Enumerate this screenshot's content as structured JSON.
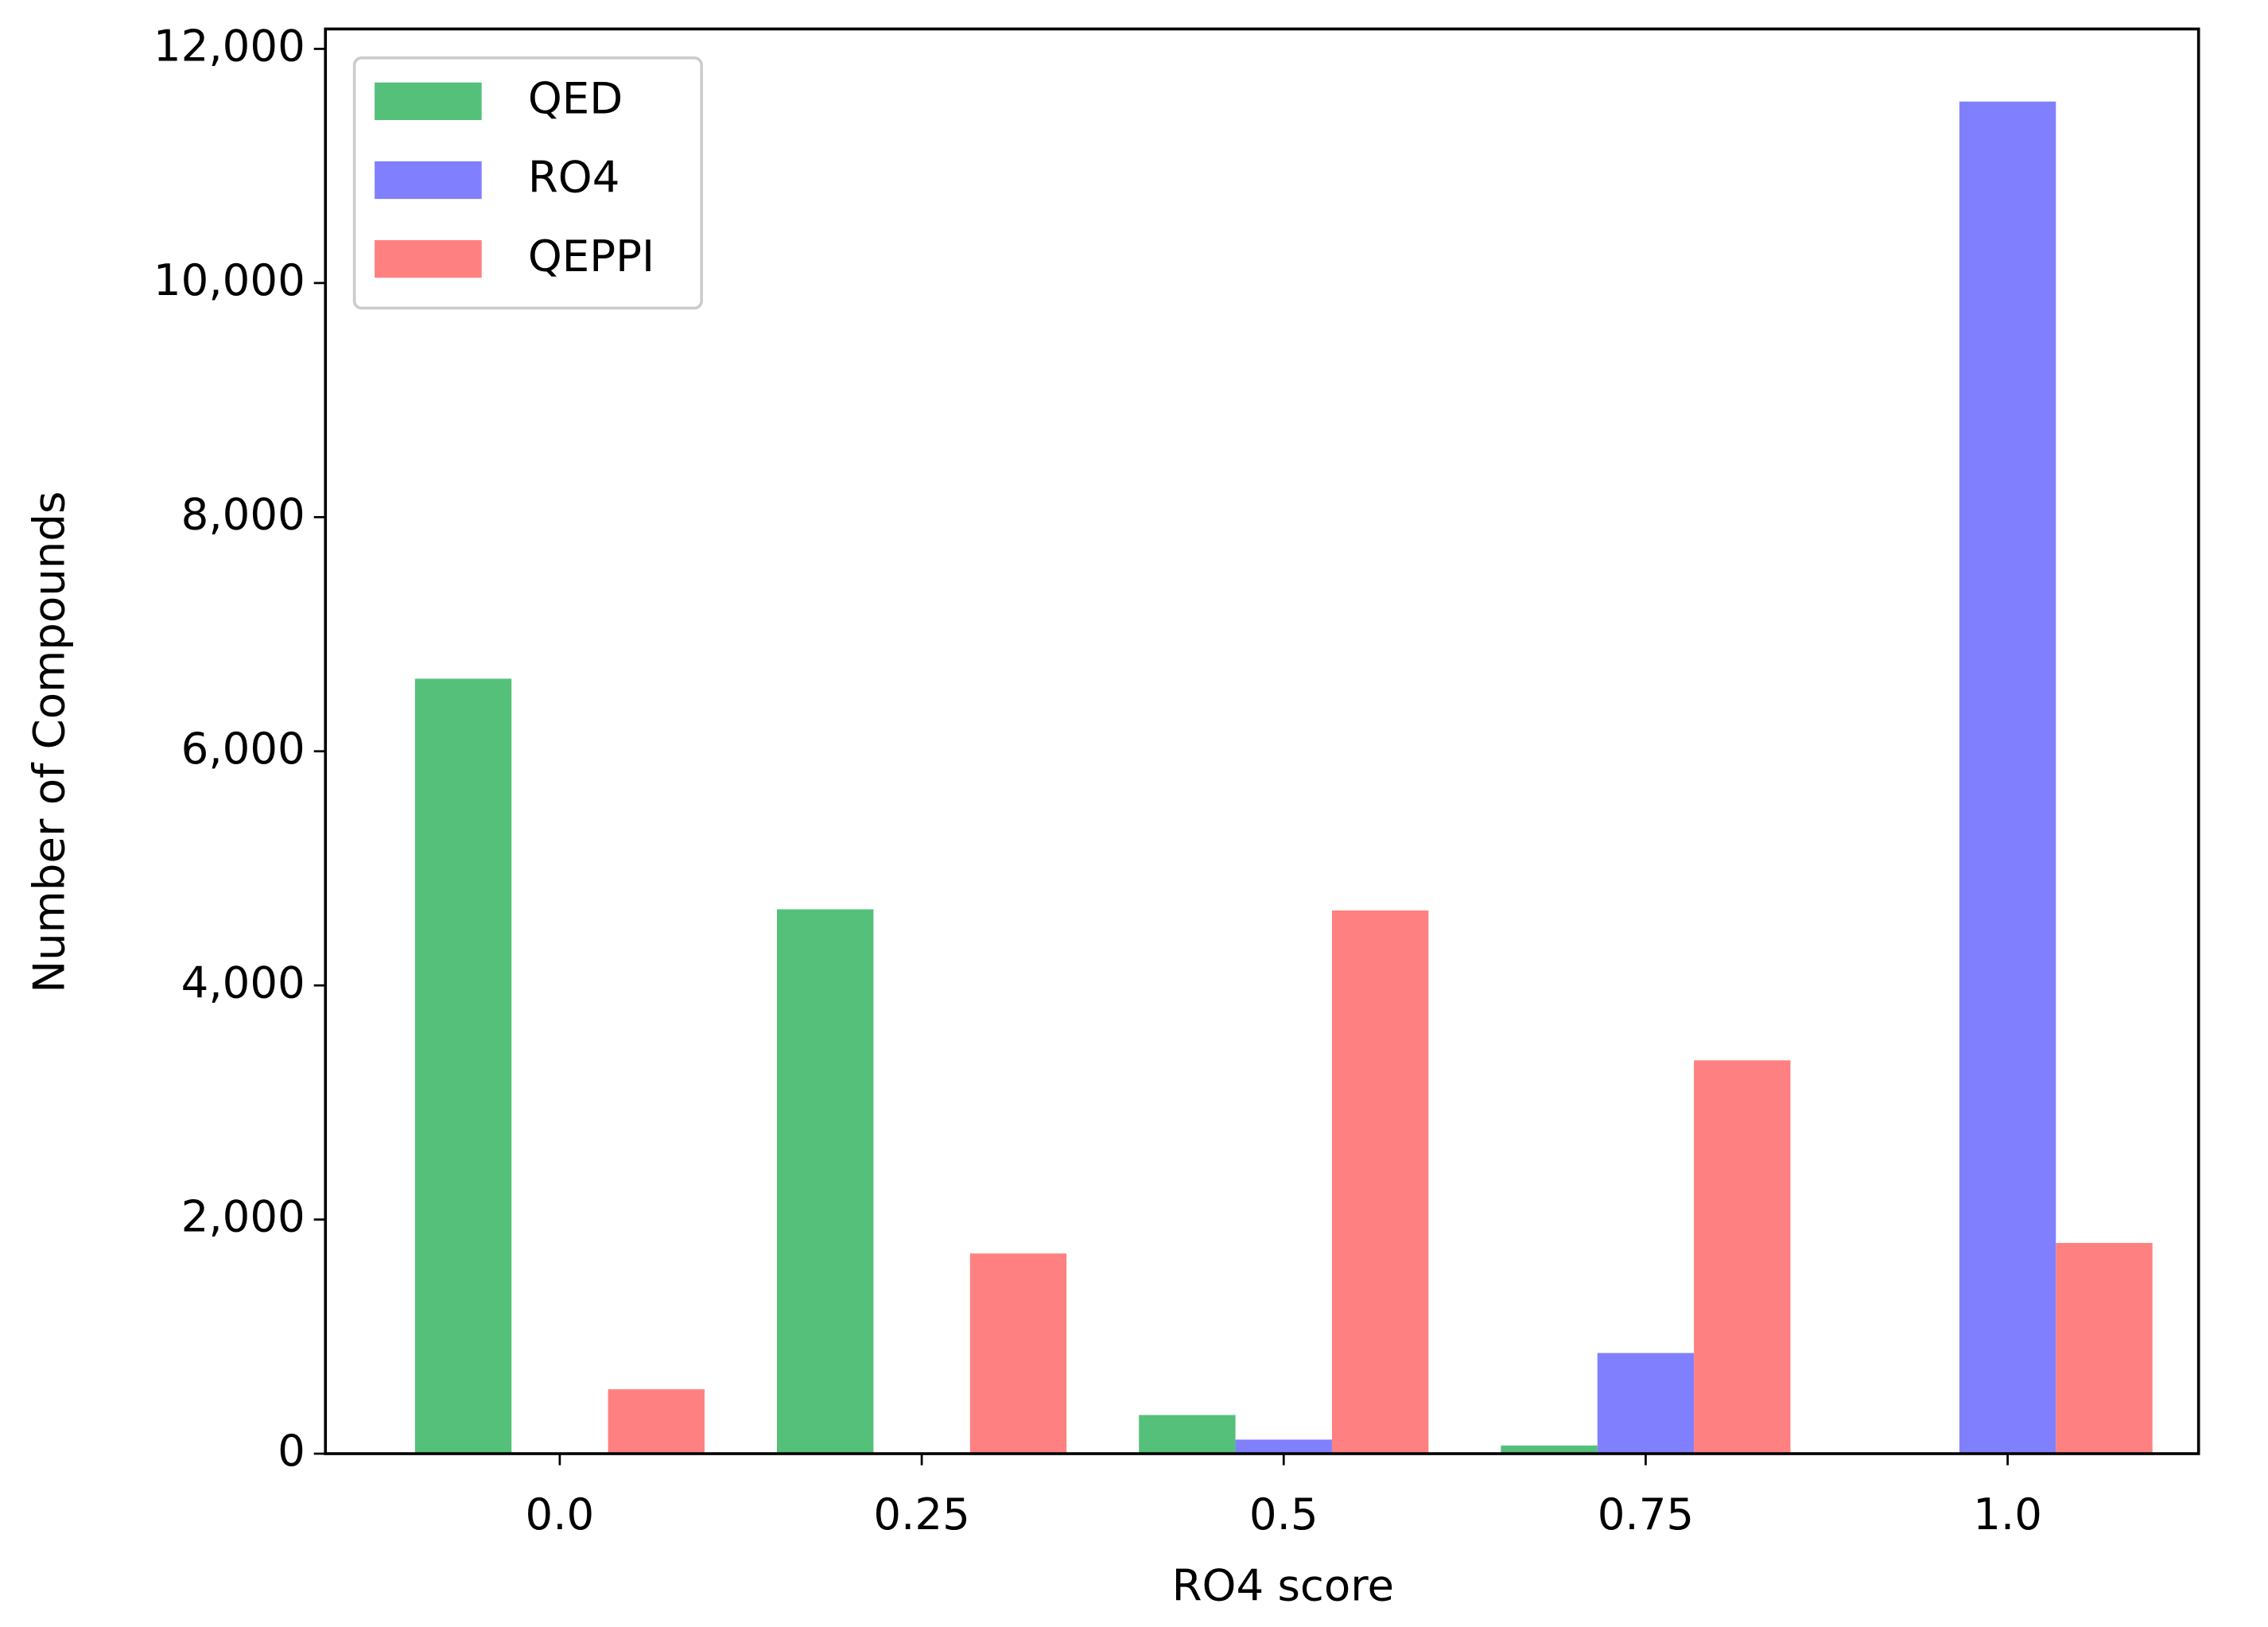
{
  "chart_data": {
    "type": "bar",
    "x_label": "RO4 score",
    "y_label": "Number of Compounds",
    "categories": [
      "0.0",
      "0.25",
      "0.5",
      "0.75",
      "1.0"
    ],
    "series": [
      {
        "name": "QED",
        "color": "#55c07a",
        "values": [
          6620,
          4650,
          330,
          70,
          0
        ]
      },
      {
        "name": "RO4",
        "color": "#8080ff",
        "values": [
          0,
          0,
          120,
          860,
          11550
        ]
      },
      {
        "name": "QEPPI",
        "color": "#ff8080",
        "values": [
          550,
          1710,
          4640,
          3360,
          1800
        ]
      }
    ],
    "ylim": [
      0,
      12170
    ],
    "yticks": [
      0,
      {
        "value": 2000,
        "label": "2,000"
      },
      {
        "value": 4000,
        "label": "4,000"
      },
      {
        "value": 6000,
        "label": "6,000"
      },
      {
        "value": 8000,
        "label": "8,000"
      },
      {
        "value": 10000,
        "label": "10,000"
      },
      {
        "value": 12000,
        "label": "12,000"
      }
    ],
    "legend": "upper left",
    "grid": false
  }
}
